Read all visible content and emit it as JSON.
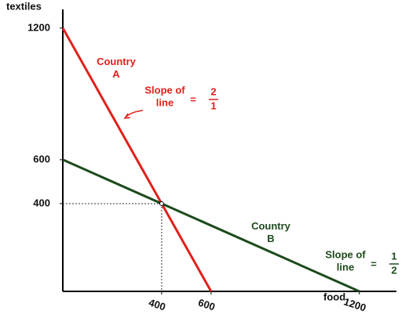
{
  "chart_data": {
    "type": "line",
    "y_label": "textiles",
    "x_label": "food",
    "series": [
      {
        "name": "Country A",
        "color": "#e0201b",
        "x": [
          0,
          600
        ],
        "values": [
          1200,
          0
        ]
      },
      {
        "name": "Country B",
        "color": "#1c4a1c",
        "x": [
          0,
          1200
        ],
        "values": [
          600,
          0
        ]
      }
    ],
    "intersection": {
      "x": 400,
      "y": 400
    },
    "annotations": [
      {
        "lines": [
          "Slope of",
          "line"
        ],
        "equals": "=",
        "numerator": "2",
        "denominator": "1",
        "color": "#e0201b"
      },
      {
        "lines": [
          "Slope of",
          "line"
        ],
        "equals": "=",
        "numerator": "1",
        "denominator": "2",
        "color": "#1c4a1c"
      }
    ],
    "xlim": [
      0,
      1350
    ],
    "ylim": [
      0,
      1285
    ],
    "xticks": [
      400,
      600,
      1200
    ],
    "yticks": [
      400,
      600,
      1200
    ]
  }
}
